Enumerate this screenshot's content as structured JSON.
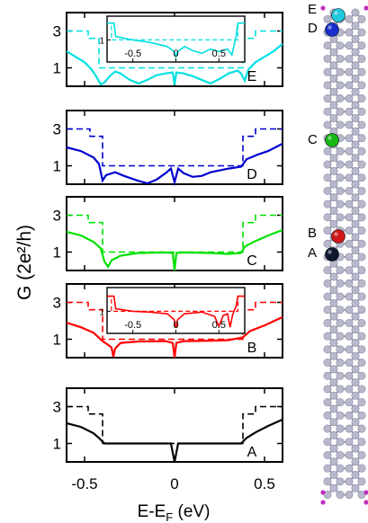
{
  "chart_data": {
    "type": "line",
    "ylabel": "G (2e²/h)",
    "xlabel": "E-E",
    "xlabel_subscript": "F",
    "xlabel_unit": " (eV)",
    "xlim": [
      -0.6,
      0.6
    ],
    "ylim": [
      0,
      4
    ],
    "x_ticks": [
      "-0.5",
      "0",
      "0.5"
    ],
    "y_ticks": [
      "1",
      "3"
    ],
    "legend": "none",
    "grid": false,
    "series_style": {
      "dashed": "pristine ribbon (reference)",
      "solid": "ribbon with adatom"
    },
    "panels": [
      {
        "label": "E",
        "color": "#00e0e0",
        "dashed": [
          [
            -0.6,
            3
          ],
          [
            -0.48,
            3
          ],
          [
            -0.48,
            2.6
          ],
          [
            -0.42,
            2.6
          ],
          [
            -0.42,
            1.0
          ],
          [
            0.38,
            1.0
          ],
          [
            0.38,
            2.6
          ],
          [
            0.45,
            2.6
          ],
          [
            0.45,
            3
          ],
          [
            0.6,
            3
          ]
        ],
        "solid": [
          [
            -0.6,
            1.9
          ],
          [
            -0.55,
            1.6
          ],
          [
            -0.5,
            1.3
          ],
          [
            -0.46,
            0.9
          ],
          [
            -0.43,
            0.45
          ],
          [
            -0.41,
            0.1
          ],
          [
            -0.39,
            0.2
          ],
          [
            -0.36,
            0.55
          ],
          [
            -0.33,
            0.8
          ],
          [
            -0.3,
            0.7
          ],
          [
            -0.25,
            0.35
          ],
          [
            -0.2,
            0.15
          ],
          [
            -0.15,
            0.35
          ],
          [
            -0.1,
            0.6
          ],
          [
            -0.05,
            0.7
          ],
          [
            -0.01,
            0.75
          ],
          [
            0.0,
            0.08
          ],
          [
            0.01,
            0.75
          ],
          [
            0.05,
            0.7
          ],
          [
            0.1,
            0.55
          ],
          [
            0.15,
            0.35
          ],
          [
            0.2,
            0.15
          ],
          [
            0.25,
            0.4
          ],
          [
            0.3,
            0.7
          ],
          [
            0.35,
            0.85
          ],
          [
            0.37,
            0.7
          ],
          [
            0.39,
            0.3
          ],
          [
            0.41,
            0.9
          ],
          [
            0.45,
            1.3
          ],
          [
            0.5,
            1.6
          ],
          [
            0.55,
            1.9
          ],
          [
            0.6,
            2.3
          ]
        ],
        "inset": {
          "xlim": [
            -0.8,
            0.8
          ],
          "x_ticks": [
            "-0.5",
            "0",
            "0.5"
          ],
          "y_ticks": [
            "1"
          ],
          "solid": [
            [
              -0.8,
              2.0
            ],
            [
              -0.72,
              2.0
            ],
            [
              -0.7,
              1.2
            ],
            [
              -0.5,
              1.0
            ],
            [
              -0.3,
              0.85
            ],
            [
              -0.1,
              0.6
            ],
            [
              -0.02,
              0.3
            ],
            [
              0.0,
              0.0
            ],
            [
              0.02,
              0.3
            ],
            [
              0.1,
              0.6
            ],
            [
              0.2,
              0.35
            ],
            [
              0.3,
              0.2
            ],
            [
              0.4,
              0.45
            ],
            [
              0.5,
              0.3
            ],
            [
              0.6,
              0.45
            ],
            [
              0.65,
              0.1
            ],
            [
              0.7,
              1.2
            ],
            [
              0.72,
              2.0
            ],
            [
              0.8,
              2.0
            ]
          ],
          "dashed": [
            [
              -0.8,
              2.0
            ],
            [
              -0.75,
              2.0
            ],
            [
              -0.75,
              1.0
            ],
            [
              0.72,
              1.0
            ],
            [
              0.72,
              2.0
            ],
            [
              0.8,
              2.0
            ]
          ]
        }
      },
      {
        "label": "D",
        "color": "#0000d0",
        "dashed": [
          [
            -0.6,
            3
          ],
          [
            -0.47,
            3
          ],
          [
            -0.47,
            2.6
          ],
          [
            -0.4,
            2.6
          ],
          [
            -0.4,
            1.0
          ],
          [
            0.38,
            1.0
          ],
          [
            0.38,
            2.6
          ],
          [
            0.45,
            2.6
          ],
          [
            0.45,
            3
          ],
          [
            0.6,
            3
          ]
        ],
        "solid": [
          [
            -0.6,
            2.0
          ],
          [
            -0.52,
            1.8
          ],
          [
            -0.45,
            1.45
          ],
          [
            -0.42,
            1.1
          ],
          [
            -0.4,
            0.2
          ],
          [
            -0.38,
            0.5
          ],
          [
            -0.33,
            0.65
          ],
          [
            -0.28,
            0.45
          ],
          [
            -0.2,
            0.18
          ],
          [
            -0.15,
            0.05
          ],
          [
            -0.1,
            0.25
          ],
          [
            -0.05,
            0.6
          ],
          [
            -0.02,
            0.85
          ],
          [
            0.0,
            0.1
          ],
          [
            0.02,
            0.85
          ],
          [
            0.05,
            0.6
          ],
          [
            0.1,
            0.4
          ],
          [
            0.15,
            0.45
          ],
          [
            0.2,
            0.65
          ],
          [
            0.3,
            0.85
          ],
          [
            0.37,
            0.95
          ],
          [
            0.4,
            1.35
          ],
          [
            0.46,
            1.6
          ],
          [
            0.52,
            1.8
          ],
          [
            0.6,
            2.2
          ]
        ]
      },
      {
        "label": "C",
        "color": "#00e000",
        "dashed": [
          [
            -0.6,
            3
          ],
          [
            -0.48,
            3
          ],
          [
            -0.48,
            2.6
          ],
          [
            -0.4,
            2.6
          ],
          [
            -0.4,
            1.0
          ],
          [
            0.38,
            1.0
          ],
          [
            0.38,
            2.6
          ],
          [
            0.45,
            2.6
          ],
          [
            0.45,
            3
          ],
          [
            0.6,
            3
          ]
        ],
        "solid": [
          [
            -0.6,
            2.1
          ],
          [
            -0.52,
            1.9
          ],
          [
            -0.45,
            1.55
          ],
          [
            -0.41,
            1.2
          ],
          [
            -0.39,
            0.5
          ],
          [
            -0.37,
            0.2
          ],
          [
            -0.35,
            0.55
          ],
          [
            -0.3,
            0.8
          ],
          [
            -0.2,
            0.95
          ],
          [
            -0.05,
            0.98
          ],
          [
            -0.01,
            0.95
          ],
          [
            0.0,
            0.0
          ],
          [
            0.01,
            0.95
          ],
          [
            0.05,
            0.98
          ],
          [
            0.2,
            0.95
          ],
          [
            0.3,
            0.9
          ],
          [
            0.37,
            0.95
          ],
          [
            0.39,
            1.3
          ],
          [
            0.45,
            1.6
          ],
          [
            0.52,
            1.9
          ],
          [
            0.6,
            2.2
          ]
        ]
      },
      {
        "label": "B",
        "color": "#ff0000",
        "dashed": [
          [
            -0.6,
            3
          ],
          [
            -0.48,
            3
          ],
          [
            -0.48,
            2.6
          ],
          [
            -0.4,
            2.6
          ],
          [
            -0.4,
            1.0
          ],
          [
            0.38,
            1.0
          ],
          [
            0.38,
            2.6
          ],
          [
            0.45,
            2.6
          ],
          [
            0.45,
            3
          ],
          [
            0.6,
            3
          ]
        ],
        "solid": [
          [
            -0.6,
            1.9
          ],
          [
            -0.52,
            1.65
          ],
          [
            -0.45,
            1.35
          ],
          [
            -0.4,
            0.9
          ],
          [
            -0.37,
            0.7
          ],
          [
            -0.35,
            0.55
          ],
          [
            -0.34,
            0.05
          ],
          [
            -0.33,
            0.5
          ],
          [
            -0.3,
            0.8
          ],
          [
            -0.2,
            0.88
          ],
          [
            -0.05,
            0.9
          ],
          [
            -0.01,
            0.8
          ],
          [
            0.0,
            0.0
          ],
          [
            0.01,
            0.8
          ],
          [
            0.05,
            0.9
          ],
          [
            0.2,
            0.92
          ],
          [
            0.3,
            0.95
          ],
          [
            0.38,
            1.1
          ],
          [
            0.42,
            1.45
          ],
          [
            0.5,
            1.75
          ],
          [
            0.6,
            2.2
          ]
        ],
        "inset": {
          "xlim": [
            -0.8,
            0.8
          ],
          "x_ticks": [
            "-0.5",
            "0",
            "0.5"
          ],
          "y_ticks": [
            "1"
          ],
          "solid": [
            [
              -0.8,
              1.9
            ],
            [
              -0.72,
              1.9
            ],
            [
              -0.7,
              1.15
            ],
            [
              -0.5,
              1.0
            ],
            [
              -0.3,
              0.95
            ],
            [
              -0.1,
              0.85
            ],
            [
              -0.02,
              0.5
            ],
            [
              0.0,
              0.0
            ],
            [
              0.02,
              0.5
            ],
            [
              0.1,
              0.85
            ],
            [
              0.3,
              0.95
            ],
            [
              0.45,
              0.7
            ],
            [
              0.5,
              0.1
            ],
            [
              0.55,
              0.75
            ],
            [
              0.6,
              0.85
            ],
            [
              0.63,
              0.05
            ],
            [
              0.66,
              0.8
            ],
            [
              0.7,
              1.3
            ],
            [
              0.72,
              1.9
            ],
            [
              0.8,
              1.9
            ]
          ],
          "dashed": [
            [
              -0.8,
              1.9
            ],
            [
              -0.75,
              1.9
            ],
            [
              -0.75,
              1.0
            ],
            [
              0.72,
              1.0
            ],
            [
              0.72,
              1.9
            ],
            [
              0.8,
              1.9
            ]
          ]
        }
      },
      {
        "label": "A",
        "color": "#000000",
        "dashed": [
          [
            -0.6,
            3
          ],
          [
            -0.48,
            3
          ],
          [
            -0.48,
            2.6
          ],
          [
            -0.4,
            2.6
          ],
          [
            -0.4,
            1.0
          ],
          [
            0.38,
            1.0
          ],
          [
            0.38,
            2.6
          ],
          [
            0.45,
            2.6
          ],
          [
            0.45,
            3
          ],
          [
            0.6,
            3
          ]
        ],
        "solid": [
          [
            -0.6,
            2.1
          ],
          [
            -0.52,
            1.9
          ],
          [
            -0.45,
            1.55
          ],
          [
            -0.42,
            1.3
          ],
          [
            -0.39,
            1.0
          ],
          [
            -0.3,
            1.0
          ],
          [
            -0.1,
            1.0
          ],
          [
            -0.02,
            1.0
          ],
          [
            -0.01,
            0.5
          ],
          [
            0.0,
            0.0
          ],
          [
            0.01,
            0.5
          ],
          [
            0.02,
            1.0
          ],
          [
            0.1,
            1.0
          ],
          [
            0.3,
            1.0
          ],
          [
            0.37,
            1.0
          ],
          [
            0.4,
            1.3
          ],
          [
            0.45,
            1.6
          ],
          [
            0.52,
            1.95
          ],
          [
            0.6,
            2.3
          ]
        ]
      }
    ]
  },
  "ribbon": {
    "adatom_labels": [
      {
        "label": "E",
        "color": "#20c8e0"
      },
      {
        "label": "D",
        "color": "#1a2fd0"
      },
      {
        "label": "C",
        "color": "#18b818"
      },
      {
        "label": "B",
        "color": "#d01818"
      },
      {
        "label": "A",
        "color": "#101830"
      }
    ],
    "carbon_color": "#b8b8cc",
    "hydrogen_color": "#c030c0"
  }
}
